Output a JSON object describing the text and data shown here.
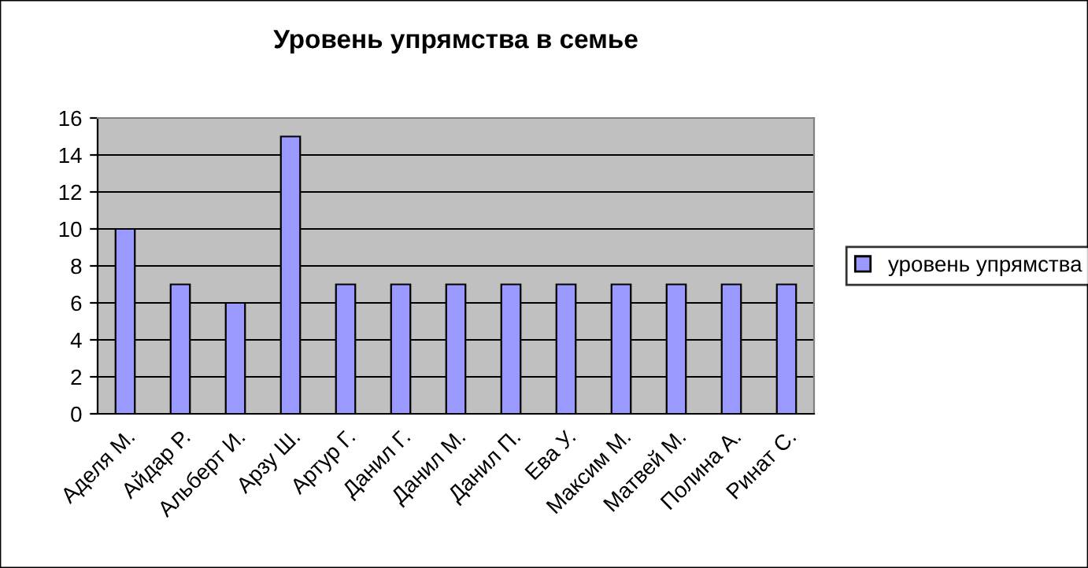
{
  "chart_data": {
    "type": "bar",
    "title": "Уровень упрямства в семье",
    "categories": [
      "Аделя М.",
      "Айдар Р.",
      "Альберт И.",
      "Арзу Ш.",
      "Артур Г.",
      "Данил Г.",
      "Данил М.",
      "Данил П.",
      "Ева У.",
      "Максим М.",
      "Матвей М.",
      "Полина А.",
      "Ринат С."
    ],
    "series": [
      {
        "name": "уровень упрямства",
        "color": "#9999ff",
        "values": [
          10,
          7,
          6,
          15,
          7,
          7,
          7,
          7,
          7,
          7,
          7,
          7,
          7
        ]
      }
    ],
    "ylim": [
      0,
      16
    ],
    "yticks": [
      0,
      2,
      4,
      6,
      8,
      10,
      12,
      14,
      16
    ],
    "grid": "y",
    "legend": "right"
  }
}
